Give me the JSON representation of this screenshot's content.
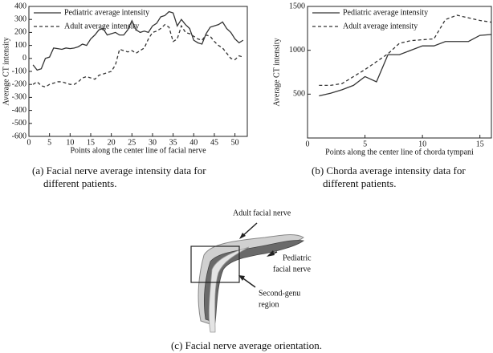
{
  "chart_data": [
    {
      "type": "line",
      "ylabel": "Average CT intensity",
      "xlabel": "Points along the center line of facial nerve",
      "x": [
        1,
        2,
        3,
        4,
        5,
        6,
        7,
        8,
        9,
        10,
        11,
        12,
        13,
        14,
        15,
        16,
        17,
        18,
        19,
        20,
        21,
        22,
        23,
        24,
        25,
        26,
        27,
        28,
        29,
        30,
        31,
        32,
        33,
        34,
        35,
        36,
        37,
        38,
        39,
        40,
        41,
        42,
        43,
        44,
        45,
        46,
        47,
        48,
        49,
        50,
        51,
        52
      ],
      "series": [
        {
          "name": "Pediatric average intensity",
          "color": "#333333",
          "style": "solid",
          "values": [
            -50,
            -90,
            -80,
            0,
            10,
            80,
            75,
            70,
            80,
            75,
            80,
            90,
            110,
            100,
            150,
            180,
            220,
            230,
            180,
            190,
            200,
            180,
            180,
            220,
            290,
            220,
            200,
            210,
            200,
            250,
            270,
            320,
            330,
            360,
            350,
            250,
            300,
            260,
            230,
            140,
            120,
            110,
            190,
            240,
            250,
            260,
            280,
            230,
            200,
            150,
            120,
            140
          ]
        },
        {
          "name": "Adult average intensity",
          "color": "#333333",
          "style": "dashed",
          "values": [
            -200,
            -180,
            -210,
            -220,
            -200,
            -190,
            -180,
            -180,
            -190,
            -200,
            -200,
            -180,
            -150,
            -140,
            -150,
            -160,
            -130,
            -120,
            -110,
            -100,
            -50,
            70,
            60,
            50,
            60,
            40,
            60,
            80,
            150,
            200,
            210,
            230,
            260,
            240,
            130,
            150,
            250,
            200,
            190,
            170,
            150,
            140,
            180,
            170,
            130,
            100,
            80,
            40,
            0,
            -10,
            20,
            10
          ]
        }
      ],
      "xlim": [
        0,
        53
      ],
      "xticks": [
        0,
        5,
        10,
        15,
        20,
        25,
        30,
        35,
        40,
        45,
        50
      ],
      "ylim": [
        -600,
        400
      ],
      "yticks": [
        -600,
        -500,
        -400,
        -300,
        -200,
        -100,
        0,
        100,
        200,
        300,
        400
      ],
      "caption": [
        "(a) Facial nerve average intensity data for",
        "different patients."
      ]
    },
    {
      "type": "line",
      "ylabel": "Average CT intensity",
      "xlabel": "Points along the center line of chorda tympani",
      "x": [
        1,
        2,
        3,
        4,
        5,
        6,
        7,
        8,
        9,
        10,
        11,
        12,
        13,
        14,
        15,
        16
      ],
      "series": [
        {
          "name": "Pediatric average intensity",
          "color": "#333333",
          "style": "solid",
          "values": [
            480,
            510,
            550,
            600,
            700,
            640,
            950,
            950,
            1000,
            1050,
            1050,
            1100,
            1100,
            1100,
            1170,
            1180
          ]
        },
        {
          "name": "Adult average intensity",
          "color": "#333333",
          "style": "dashed",
          "values": [
            600,
            600,
            620,
            700,
            780,
            870,
            960,
            1080,
            1110,
            1120,
            1130,
            1350,
            1400,
            1370,
            1340,
            1320
          ]
        }
      ],
      "xlim": [
        0,
        16
      ],
      "xticks": [
        0,
        5,
        10,
        15
      ],
      "ylim": [
        0,
        1500
      ],
      "yticks": [
        500,
        1000,
        1500
      ],
      "caption": [
        "(b) Chorda average intensity data for",
        "different patients."
      ]
    }
  ],
  "figure_c": {
    "caption": "(c) Facial nerve average orientation.",
    "labels": [
      [
        "Adult facial nerve"
      ],
      [
        "Pediatric",
        "facial nerve"
      ],
      [
        "Second-genu",
        "region"
      ]
    ]
  }
}
